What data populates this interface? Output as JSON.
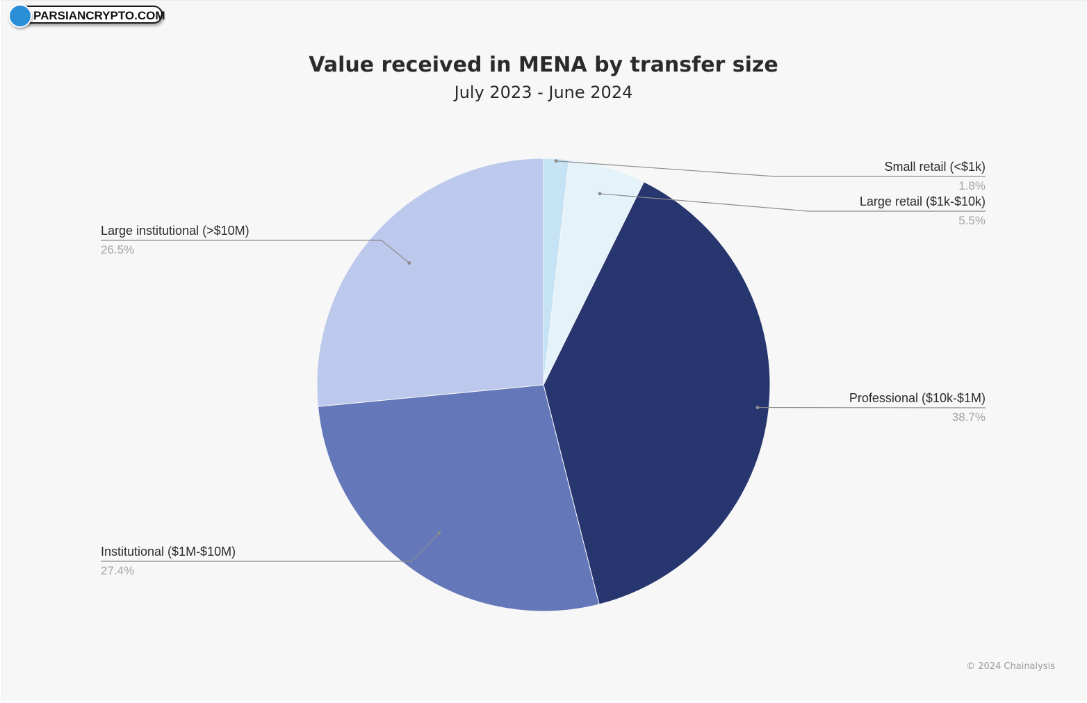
{
  "watermark": {
    "text": "PARSIANCRYPTO.COM",
    "icon": "parsiancrypto-logo-icon"
  },
  "credit": "© 2024 Chainalysis",
  "chart_data": {
    "type": "pie",
    "title": "Value received in MENA by transfer size",
    "subtitle": "July 2023 - June 2024",
    "start_angle_deg": 0,
    "direction": "clockwise",
    "slices": [
      {
        "label": "Small retail (<$1k)",
        "value": 1.8,
        "display": "1.8%",
        "color": "#c6e3f5",
        "side": "right"
      },
      {
        "label": "Large retail ($1k-$10k)",
        "value": 5.5,
        "display": "5.5%",
        "color": "#e4f2f9",
        "side": "right"
      },
      {
        "label": "Professional ($10k-$1M)",
        "value": 38.7,
        "display": "38.7%",
        "color": "#283670",
        "side": "right"
      },
      {
        "label": "Institutional ($1M-$10M)",
        "value": 27.4,
        "display": "27.4%",
        "color": "#6477b9",
        "side": "left"
      },
      {
        "label": "Large institutional (>$10M)",
        "value": 26.5,
        "display": "26.5%",
        "color": "#bcc9ec",
        "side": "left"
      }
    ]
  }
}
